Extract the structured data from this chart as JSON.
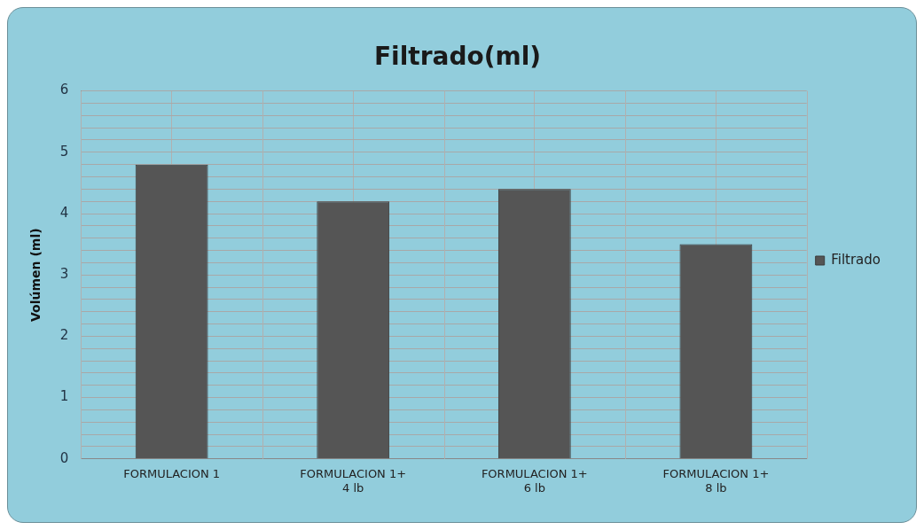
{
  "chart_data": {
    "type": "bar",
    "title": "Filtrado(ml)",
    "ylabel": "Volúmen (ml)",
    "categories": [
      "FORMULACION 1",
      "FORMULACION 1+\n4 lb",
      "FORMULACION 1+\n6 lb",
      "FORMULACION 1+\n8 lb"
    ],
    "series": [
      {
        "name": "Filtrado",
        "color": "#555555",
        "values": [
          4.8,
          4.2,
          4.4,
          3.5
        ]
      }
    ],
    "ylim": [
      0,
      6
    ],
    "yticks": [
      0,
      {
        "value": 0.2,
        "label": null
      },
      {
        "value": 0.4,
        "label": null
      },
      {
        "value": 0.6,
        "label": null
      },
      {
        "value": 0.8,
        "label": null
      },
      1,
      {
        "value": 1.2,
        "label": null
      },
      {
        "value": 1.4,
        "label": null
      },
      {
        "value": 1.6,
        "label": null
      },
      {
        "value": 1.8,
        "label": null
      },
      2,
      {
        "value": 2.2,
        "label": null
      },
      {
        "value": 2.4,
        "label": null
      },
      {
        "value": 2.6,
        "label": null
      },
      {
        "value": 2.8,
        "label": null
      },
      3,
      {
        "value": 3.2,
        "label": null
      },
      {
        "value": 3.4,
        "label": null
      },
      {
        "value": 3.6,
        "label": null
      },
      {
        "value": 3.8,
        "label": null
      },
      4,
      {
        "value": 4.2,
        "label": null
      },
      {
        "value": 4.4,
        "label": null
      },
      {
        "value": 4.6,
        "label": null
      },
      {
        "value": 4.8,
        "label": null
      },
      5,
      {
        "value": 5.2,
        "label": null
      },
      {
        "value": 5.4,
        "label": null
      },
      {
        "value": 5.6,
        "label": null
      },
      {
        "value": 5.8,
        "label": null
      },
      6
    ],
    "grid": true,
    "legend": "right"
  }
}
